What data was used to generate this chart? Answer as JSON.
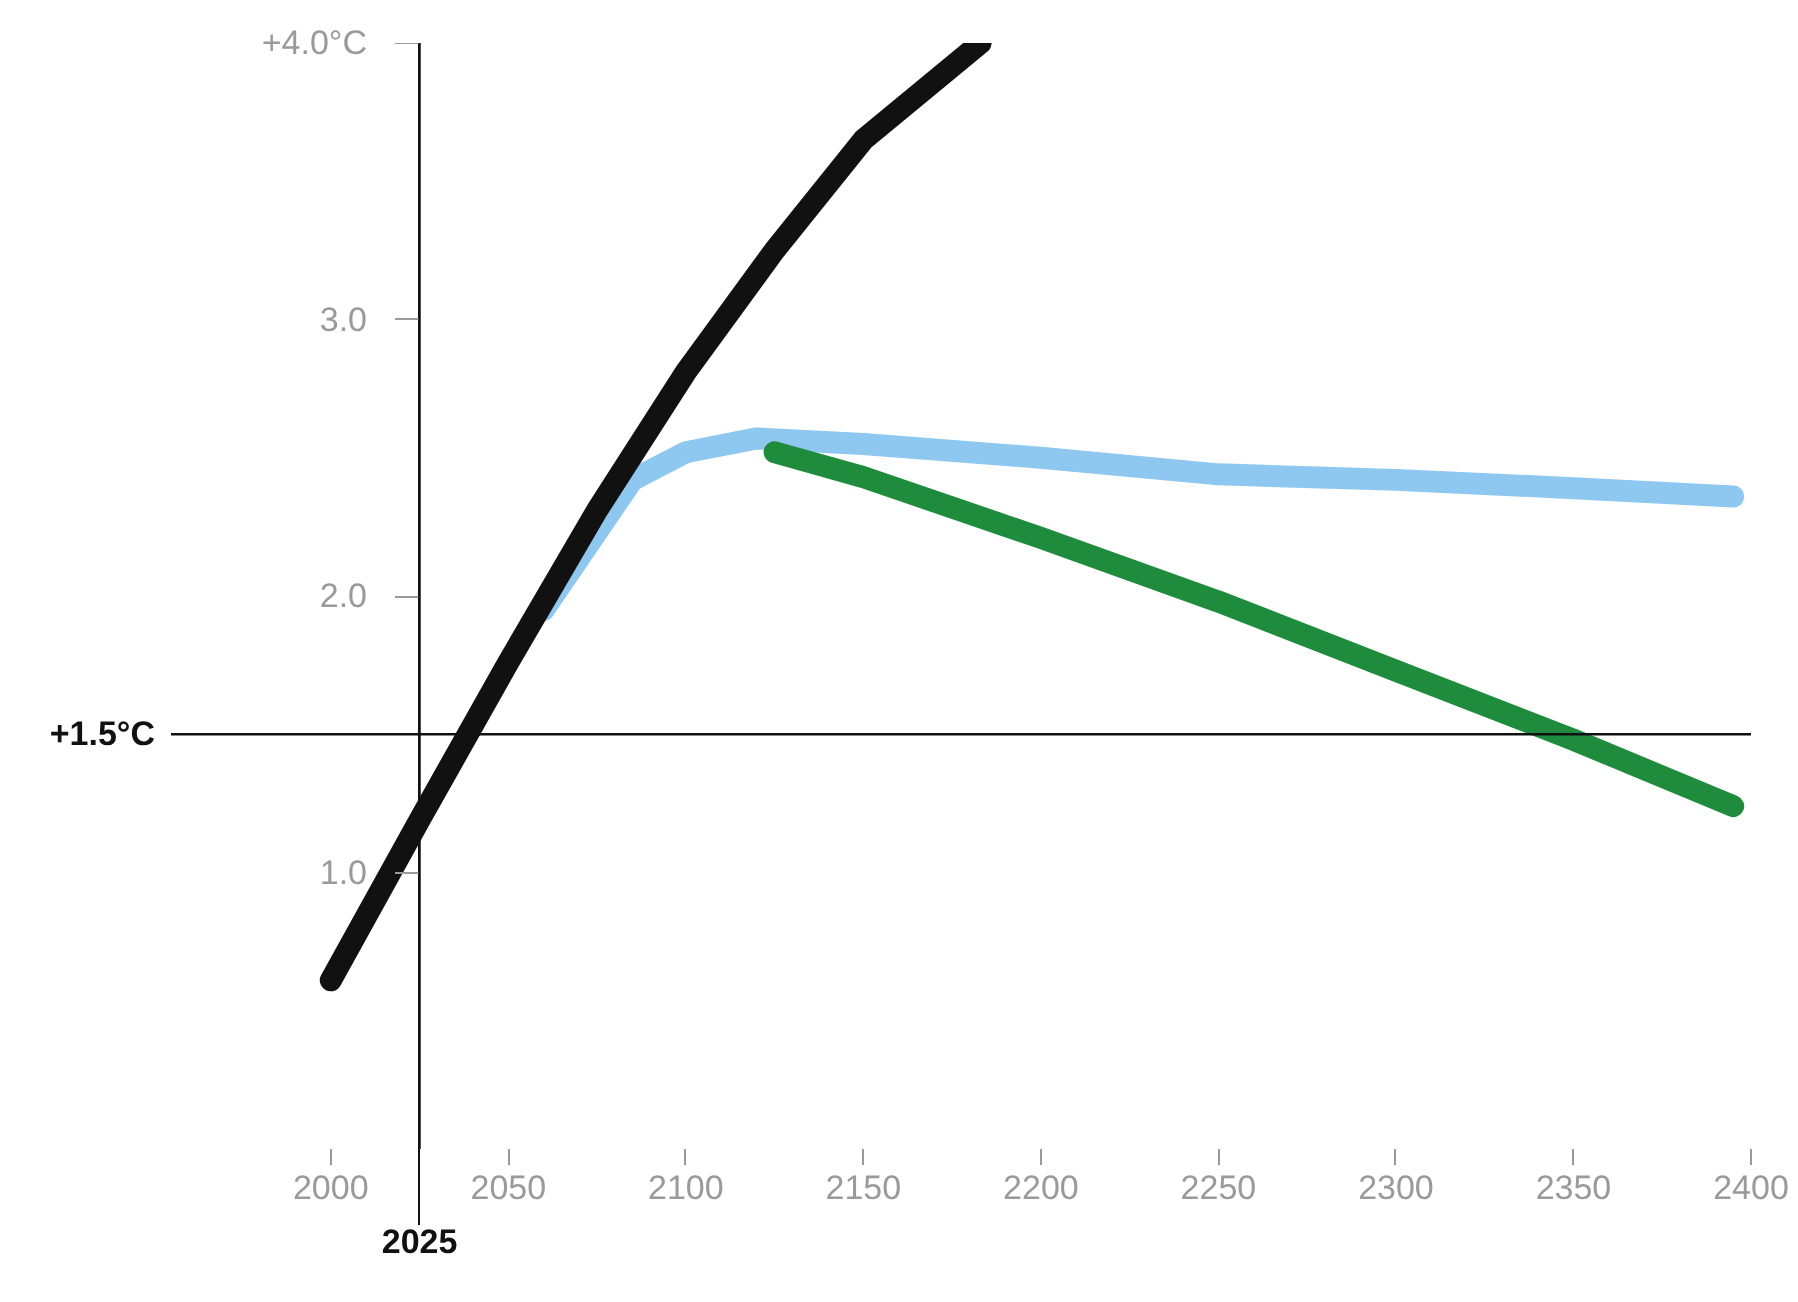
{
  "chart_data": {
    "type": "line",
    "xlim": [
      1955,
      2400
    ],
    "xticks": [
      2000,
      2050,
      2100,
      2150,
      2200,
      2250,
      2300,
      2350,
      2400
    ],
    "ylim": [
      0,
      4.0
    ],
    "yticks": [
      {
        "value": 1,
        "label": "1.0"
      },
      {
        "value": 2,
        "label": "2.0"
      },
      {
        "value": 3,
        "label": "3.0"
      },
      {
        "value": 4,
        "label": "+4.0°C"
      }
    ],
    "grid": false,
    "line_style": "solid",
    "series": [
      {
        "color": "#8ec8f0",
        "x": [
          2060,
          2085,
          2100,
          2120,
          2150,
          2200,
          2250,
          2300,
          2350,
          2395
        ],
        "values": [
          1.95,
          2.42,
          2.52,
          2.57,
          2.55,
          2.5,
          2.44,
          2.42,
          2.39,
          2.36
        ]
      },
      {
        "color": "#1e8c3c",
        "x": [
          2125,
          2150,
          2200,
          2250,
          2300,
          2350,
          2395
        ],
        "values": [
          2.52,
          2.43,
          2.21,
          1.98,
          1.73,
          1.48,
          1.24
        ]
      },
      {
        "color": "#111111",
        "x": [
          2000,
          2025,
          2050,
          2075,
          2100,
          2125,
          2150,
          2183
        ],
        "values": [
          0.61,
          1.19,
          1.76,
          2.31,
          2.81,
          3.25,
          3.65,
          4.0
        ]
      }
    ],
    "ref_lines": [
      {
        "axis": "y",
        "value": 1.5,
        "label": "+1.5°C",
        "color": "#111111"
      },
      {
        "axis": "x",
        "value": 2025,
        "label": "2025",
        "color": "#111111"
      }
    ]
  }
}
